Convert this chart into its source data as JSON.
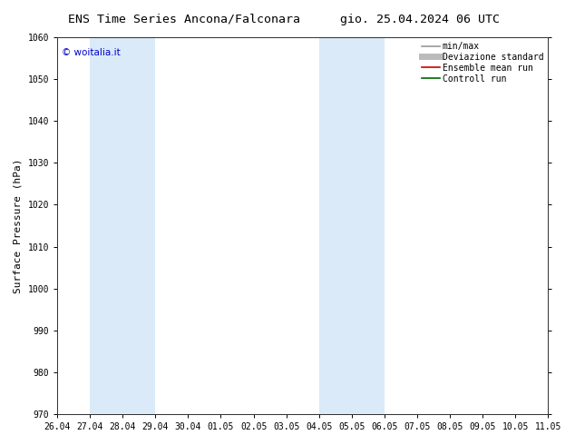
{
  "title_left": "ENS Time Series Ancona/Falconara",
  "title_right": "gio. 25.04.2024 06 UTC",
  "ylabel": "Surface Pressure (hPa)",
  "ylim": [
    970,
    1060
  ],
  "yticks": [
    970,
    980,
    990,
    1000,
    1010,
    1020,
    1030,
    1040,
    1050,
    1060
  ],
  "xlim_start": 0,
  "xlim_end": 15,
  "xtick_labels": [
    "26.04",
    "27.04",
    "28.04",
    "29.04",
    "30.04",
    "01.05",
    "02.05",
    "03.05",
    "04.05",
    "05.05",
    "06.05",
    "07.05",
    "08.05",
    "09.05",
    "10.05",
    "11.05"
  ],
  "xtick_positions": [
    0,
    1,
    2,
    3,
    4,
    5,
    6,
    7,
    8,
    9,
    10,
    11,
    12,
    13,
    14,
    15
  ],
  "weekend_bands": [
    {
      "start": 1,
      "end": 3
    },
    {
      "start": 8,
      "end": 10
    }
  ],
  "weekend_color": "#daeaf8",
  "copyright_text": "© woitalia.it",
  "copyright_color": "#0000cc",
  "legend_entries": [
    {
      "label": "min/max",
      "color": "#999999",
      "lw": 1.2
    },
    {
      "label": "Deviazione standard",
      "color": "#bbbbbb",
      "lw": 5
    },
    {
      "label": "Ensemble mean run",
      "color": "#cc0000",
      "lw": 1.2
    },
    {
      "label": "Controll run",
      "color": "#006600",
      "lw": 1.2
    }
  ],
  "bg_color": "#ffffff",
  "title_fontsize": 9.5,
  "tick_fontsize": 7,
  "ylabel_fontsize": 8,
  "copyright_fontsize": 7.5,
  "legend_fontsize": 7
}
